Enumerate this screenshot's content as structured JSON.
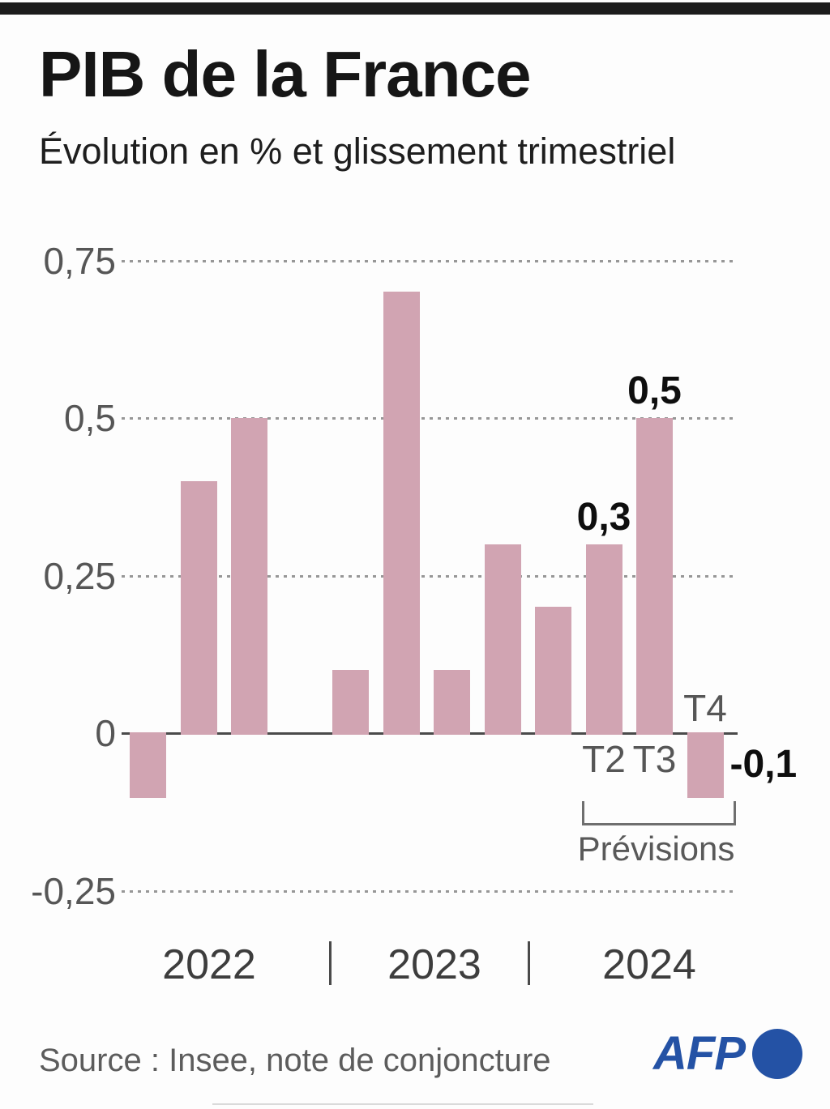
{
  "header": {
    "title": "PIB de la France",
    "subtitle": "Évolution en % et glissement trimestriel"
  },
  "chart_data": {
    "type": "bar",
    "title": "PIB de la France",
    "subtitle": "Évolution en % et glissement trimestriel",
    "unit": "%",
    "bar_color": "#d1a4b2",
    "grid": "dotted-horizontal",
    "legend": "none",
    "categories": [
      "2022 T1",
      "2022 T2",
      "2022 T3",
      "2022 T4",
      "2023 T1",
      "2023 T2",
      "2023 T3",
      "2023 T4",
      "2024 T1",
      "2024 T2",
      "2024 T3",
      "2024 T4"
    ],
    "values": [
      -0.1,
      0.4,
      0.5,
      0.0,
      0.1,
      0.7,
      0.1,
      0.3,
      0.2,
      0.3,
      0.5,
      -0.1
    ],
    "ylim": [
      -0.35,
      0.85
    ],
    "yticks": [
      {
        "value": 0.75,
        "label": "0,75"
      },
      {
        "value": 0.5,
        "label": "0,5"
      },
      {
        "value": 0.25,
        "label": "0,25"
      },
      {
        "value": 0,
        "label": "0"
      },
      {
        "value": -0.25,
        "label": "-0,25"
      }
    ],
    "value_annotations": [
      {
        "bar": 9,
        "label": "0,3",
        "placement": "above"
      },
      {
        "bar": 10,
        "label": "0,5",
        "placement": "above"
      },
      {
        "bar": 11,
        "label": "-0,1",
        "placement": "right"
      }
    ],
    "quarter_labels": [
      {
        "bar": 9,
        "label": "T2",
        "side": "below"
      },
      {
        "bar": 10,
        "label": "T3",
        "side": "below"
      },
      {
        "bar": 11,
        "label": "T4",
        "side": "above"
      }
    ],
    "forecast_bracket": {
      "label": "Prévisions",
      "from_bar": 9,
      "to_bar": 11
    },
    "x_axis": {
      "year_labels": [
        "2022",
        "2023",
        "2024"
      ],
      "separator": "|"
    }
  },
  "footer": {
    "source": "Source : Insee, note de conjoncture",
    "agency": "AFP"
  },
  "colors": {
    "bar": "#d1a4b2",
    "accent_blue": "#2452a5",
    "top_bar": "#1c1c1c",
    "grid": "#979797",
    "axis": "#4a4a4a",
    "muted_text": "#565656",
    "dark_text": "#161616"
  }
}
